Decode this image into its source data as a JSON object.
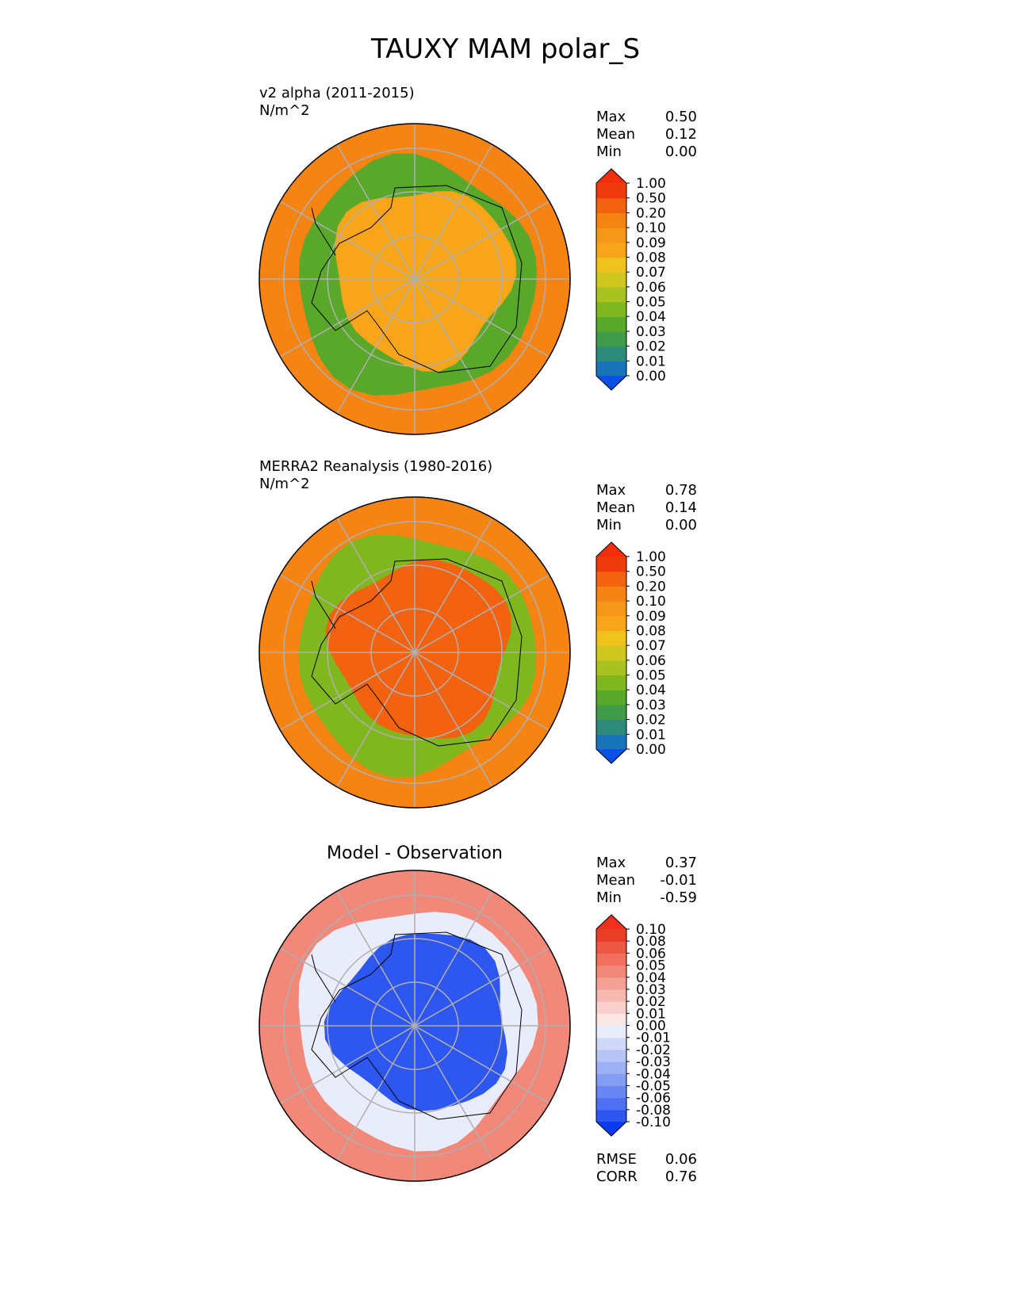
{
  "title": "TAUXY MAM polar_S",
  "panels": [
    {
      "id": "test",
      "title_line1": "v2 alpha (2011-2015)",
      "title_line2": "N/m^2",
      "stats": [
        {
          "label": "Max",
          "value": "0.50"
        },
        {
          "label": "Mean",
          "value": "0.12"
        },
        {
          "label": "Min",
          "value": "0.00"
        }
      ]
    },
    {
      "id": "ref",
      "title_line1": "MERRA2 Reanalysis (1980-2016)",
      "title_line2": "N/m^2",
      "stats": [
        {
          "label": "Max",
          "value": "0.78"
        },
        {
          "label": "Mean",
          "value": "0.14"
        },
        {
          "label": "Min",
          "value": "0.00"
        }
      ]
    },
    {
      "id": "diff",
      "title_center": "Model - Observation",
      "stats": [
        {
          "label": "Max",
          "value": "0.37"
        },
        {
          "label": "Mean",
          "value": "-0.01"
        },
        {
          "label": "Min",
          "value": "-0.59"
        }
      ],
      "metrics": [
        {
          "label": "RMSE",
          "value": "0.06"
        },
        {
          "label": "CORR",
          "value": "0.76"
        }
      ]
    }
  ],
  "chart_data": [
    {
      "type": "heatmap",
      "projection": "south-polar-stereographic",
      "title": "v2 alpha (2011-2015)",
      "units": "N/m^2",
      "colorbar_levels": [
        "0.00",
        "0.01",
        "0.02",
        "0.03",
        "0.04",
        "0.05",
        "0.06",
        "0.07",
        "0.08",
        "0.09",
        "0.10",
        "0.20",
        "0.50",
        "1.00"
      ],
      "colorbar_colors": [
        "#0a50e6",
        "#1a74b8",
        "#2e8a7a",
        "#3f9a4a",
        "#5aa82a",
        "#80b61e",
        "#a8c220",
        "#cfc61f",
        "#efc21c",
        "#f8a519",
        "#f69717",
        "#f58413",
        "#f3620e",
        "#ef3a0c",
        "#f42d0c"
      ],
      "zones": [
        {
          "region": "outer ring (50S-60S)",
          "value": 0.15
        },
        {
          "region": "near-coast ring",
          "value": 0.03
        },
        {
          "region": "Antarctic interior",
          "value": 0.08
        }
      ]
    },
    {
      "type": "heatmap",
      "projection": "south-polar-stereographic",
      "title": "MERRA2 Reanalysis (1980-2016)",
      "units": "N/m^2",
      "colorbar_levels": [
        "0.00",
        "0.01",
        "0.02",
        "0.03",
        "0.04",
        "0.05",
        "0.06",
        "0.07",
        "0.08",
        "0.09",
        "0.10",
        "0.20",
        "0.50",
        "1.00"
      ],
      "colorbar_colors": [
        "#0a50e6",
        "#1a74b8",
        "#2e8a7a",
        "#3f9a4a",
        "#5aa82a",
        "#80b61e",
        "#a8c220",
        "#cfc61f",
        "#efc21c",
        "#f8a519",
        "#f69717",
        "#f58413",
        "#f3620e",
        "#ef3a0c",
        "#f42d0c"
      ],
      "zones": [
        {
          "region": "outer ring (50S-60S)",
          "value": 0.1
        },
        {
          "region": "near-coast ring",
          "value": 0.04
        },
        {
          "region": "Antarctic interior",
          "value": 0.2
        }
      ]
    },
    {
      "type": "heatmap",
      "projection": "south-polar-stereographic",
      "title": "Model - Observation",
      "units": "N/m^2",
      "colorbar_levels": [
        "-0.10",
        "-0.08",
        "-0.06",
        "-0.05",
        "-0.04",
        "-0.03",
        "-0.02",
        "-0.01",
        "0.00",
        "0.01",
        "0.02",
        "0.03",
        "0.04",
        "0.05",
        "0.06",
        "0.08",
        "0.10"
      ],
      "colorbar_colors": [
        "#0b3bf0",
        "#2e56f0",
        "#4f70f2",
        "#6a86f3",
        "#849cf4",
        "#9db0f5",
        "#b6c4f7",
        "#cfd8f9",
        "#e8ecfb",
        "#fbe8e6",
        "#f9d0cb",
        "#f7b8b0",
        "#f4a094",
        "#f28879",
        "#ef705d",
        "#ed5842",
        "#ea3f27",
        "#f0301c"
      ],
      "zones": [
        {
          "region": "outer ring (50S-60S)",
          "value": 0.04
        },
        {
          "region": "mid ring",
          "value": -0.01
        },
        {
          "region": "Antarctic interior",
          "value": -0.1
        }
      ]
    }
  ]
}
